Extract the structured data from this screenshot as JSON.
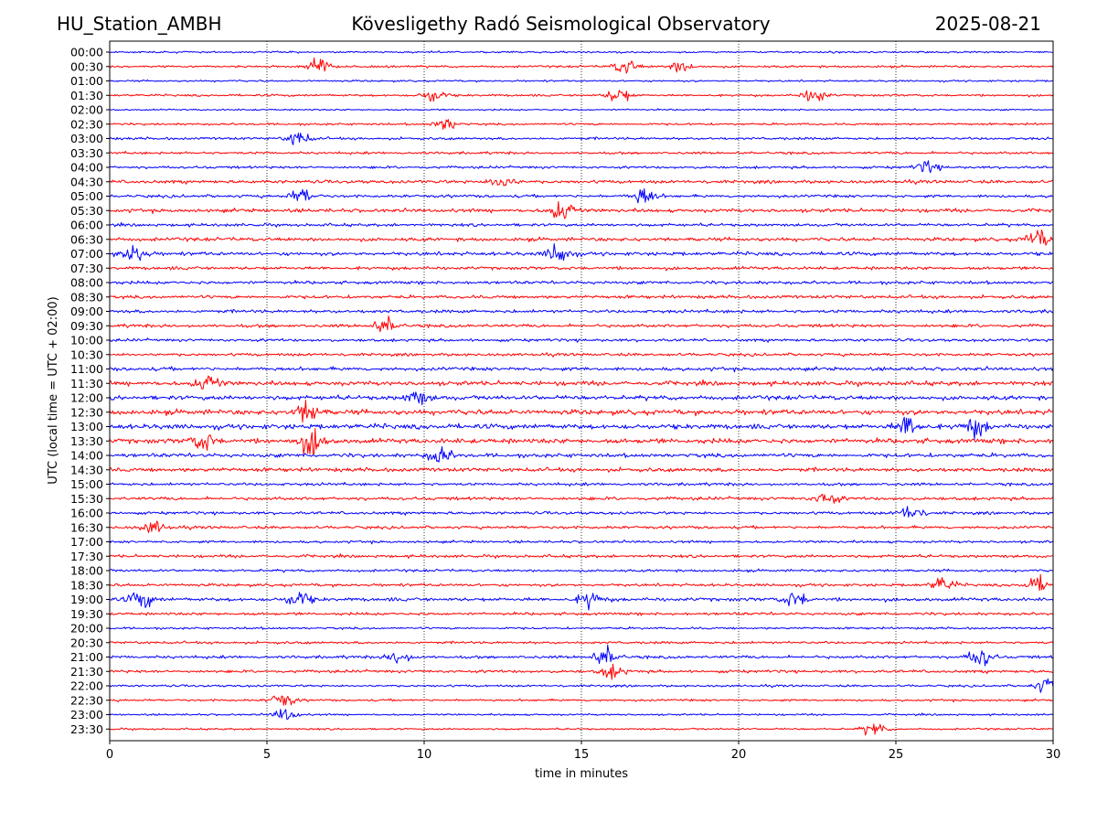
{
  "header": {
    "station": "HU_Station_AMBH",
    "title": "Kövesligethy Radó Seismological Observatory",
    "date": "2025-08-21"
  },
  "chart_data": {
    "type": "line",
    "subtype": "helicorder",
    "title": "Kövesligethy Radó Seismological Observatory",
    "xlabel": "time in minutes",
    "ylabel": "UTC (local time = UTC + 02:00)",
    "xlim": [
      0,
      30
    ],
    "xticks": [
      0,
      5,
      10,
      15,
      20,
      25,
      30
    ],
    "x_grid": "dotted vertical lines at each x tick",
    "colors": [
      "#0000ff",
      "#ff0000"
    ],
    "color_pattern": "alternating, starting with blue at 00:00",
    "rows": [
      "00:00",
      "00:30",
      "01:00",
      "01:30",
      "02:00",
      "02:30",
      "03:00",
      "03:30",
      "04:00",
      "04:30",
      "05:00",
      "05:30",
      "06:00",
      "06:30",
      "07:00",
      "07:30",
      "08:00",
      "08:30",
      "09:00",
      "09:30",
      "10:00",
      "10:30",
      "11:00",
      "11:30",
      "12:00",
      "12:30",
      "13:00",
      "13:30",
      "14:00",
      "14:30",
      "15:00",
      "15:30",
      "16:00",
      "16:30",
      "17:00",
      "17:30",
      "18:00",
      "18:30",
      "19:00",
      "19:30",
      "20:00",
      "20:30",
      "21:00",
      "21:30",
      "22:00",
      "22:30",
      "23:00",
      "23:30"
    ],
    "noise_level": [
      0.5,
      0.6,
      0.5,
      0.6,
      0.45,
      0.6,
      0.7,
      0.7,
      0.7,
      0.9,
      0.8,
      1.0,
      0.8,
      1.0,
      1.0,
      0.9,
      0.9,
      0.9,
      0.9,
      0.9,
      0.8,
      0.8,
      1.0,
      1.2,
      1.2,
      1.4,
      1.4,
      1.4,
      1.1,
      1.1,
      0.8,
      0.9,
      0.8,
      0.8,
      0.7,
      0.8,
      0.7,
      0.8,
      1.0,
      0.8,
      0.6,
      0.7,
      0.8,
      0.8,
      0.6,
      0.6,
      0.5,
      0.5
    ],
    "bursts": [
      {
        "row": "00:30",
        "minute": 6.6,
        "amplitude": 2.0
      },
      {
        "row": "00:30",
        "minute": 16.4,
        "amplitude": 1.6
      },
      {
        "row": "00:30",
        "minute": 18.2,
        "amplitude": 1.2
      },
      {
        "row": "01:30",
        "minute": 10.3,
        "amplitude": 1.5
      },
      {
        "row": "01:30",
        "minute": 16.2,
        "amplitude": 1.6
      },
      {
        "row": "01:30",
        "minute": 22.4,
        "amplitude": 1.6
      },
      {
        "row": "02:30",
        "minute": 10.7,
        "amplitude": 1.3
      },
      {
        "row": "03:00",
        "minute": 6.0,
        "amplitude": 1.4
      },
      {
        "row": "04:00",
        "minute": 26.0,
        "amplitude": 1.2
      },
      {
        "row": "04:30",
        "minute": 12.5,
        "amplitude": 1.6
      },
      {
        "row": "05:00",
        "minute": 17.0,
        "amplitude": 1.8
      },
      {
        "row": "05:00",
        "minute": 6.1,
        "amplitude": 1.5
      },
      {
        "row": "05:30",
        "minute": 14.4,
        "amplitude": 2.5
      },
      {
        "row": "06:30",
        "minute": 29.5,
        "amplitude": 1.8
      },
      {
        "row": "07:00",
        "minute": 0.8,
        "amplitude": 2.0
      },
      {
        "row": "07:00",
        "minute": 14.3,
        "amplitude": 2.2
      },
      {
        "row": "09:30",
        "minute": 8.8,
        "amplitude": 1.6
      },
      {
        "row": "11:30",
        "minute": 3.1,
        "amplitude": 2.0
      },
      {
        "row": "12:00",
        "minute": 9.8,
        "amplitude": 1.4
      },
      {
        "row": "12:30",
        "minute": 6.3,
        "amplitude": 2.5
      },
      {
        "row": "13:00",
        "minute": 25.4,
        "amplitude": 2.2
      },
      {
        "row": "13:00",
        "minute": 27.5,
        "amplitude": 2.0
      },
      {
        "row": "13:30",
        "minute": 6.4,
        "amplitude": 3.0
      },
      {
        "row": "13:30",
        "minute": 3.0,
        "amplitude": 1.8
      },
      {
        "row": "14:00",
        "minute": 10.5,
        "amplitude": 1.6
      },
      {
        "row": "15:30",
        "minute": 22.8,
        "amplitude": 1.5
      },
      {
        "row": "16:00",
        "minute": 25.5,
        "amplitude": 1.6
      },
      {
        "row": "16:30",
        "minute": 1.4,
        "amplitude": 1.2
      },
      {
        "row": "18:30",
        "minute": 26.5,
        "amplitude": 1.6
      },
      {
        "row": "18:30",
        "minute": 29.5,
        "amplitude": 1.5
      },
      {
        "row": "19:00",
        "minute": 1.0,
        "amplitude": 1.8
      },
      {
        "row": "19:00",
        "minute": 6.0,
        "amplitude": 1.8
      },
      {
        "row": "19:00",
        "minute": 15.3,
        "amplitude": 1.6
      },
      {
        "row": "19:00",
        "minute": 21.8,
        "amplitude": 1.6
      },
      {
        "row": "21:00",
        "minute": 15.8,
        "amplitude": 2.0
      },
      {
        "row": "21:00",
        "minute": 27.7,
        "amplitude": 2.0
      },
      {
        "row": "21:00",
        "minute": 9.2,
        "amplitude": 1.4
      },
      {
        "row": "21:30",
        "minute": 16.0,
        "amplitude": 1.4
      },
      {
        "row": "22:00",
        "minute": 29.8,
        "amplitude": 1.5
      },
      {
        "row": "22:30",
        "minute": 5.5,
        "amplitude": 1.6
      },
      {
        "row": "23:00",
        "minute": 5.6,
        "amplitude": 1.3
      },
      {
        "row": "23:30",
        "minute": 24.3,
        "amplitude": 1.3
      }
    ]
  }
}
